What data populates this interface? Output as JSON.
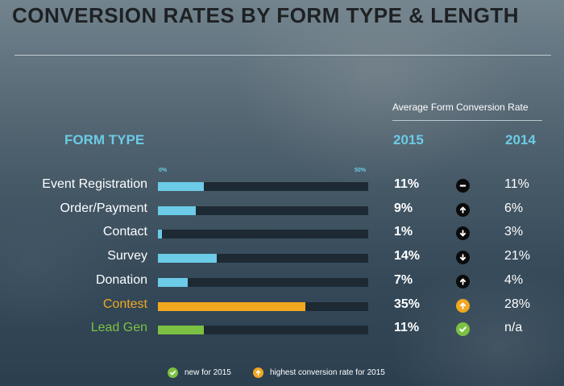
{
  "title": "CONVERSION RATES BY FORM TYPE & LENGTH",
  "avg_label": "Average Form Conversion Rate",
  "headers": {
    "form_type": "FORM TYPE",
    "y2015": "2015",
    "y2014": "2014"
  },
  "axis": {
    "min_label": "0%",
    "max_label": "50%"
  },
  "colors": {
    "bar_default": "#6ccbe6",
    "bar_contest": "#f0a820",
    "bar_leadgen": "#7cc142",
    "label_default": "#ffffff",
    "label_contest": "#f0a820",
    "label_leadgen": "#7cc142",
    "header": "#6ccbe6"
  },
  "chart_data": {
    "type": "bar",
    "orientation": "horizontal",
    "title": "CONVERSION RATES BY FORM TYPE & LENGTH",
    "xlim": [
      0,
      50
    ],
    "categories": [
      "Event Registration",
      "Order/Payment",
      "Contact",
      "Survey",
      "Donation",
      "Contest",
      "Lead Gen"
    ],
    "series": [
      {
        "name": "2015",
        "values": [
          11,
          9,
          1,
          14,
          7,
          35,
          11
        ]
      }
    ],
    "rows": [
      {
        "label": "Event Registration",
        "value": 11,
        "v2015": "11%",
        "v2014": "11%",
        "indicator": "minus-icon",
        "style": "default"
      },
      {
        "label": "Order/Payment",
        "value": 9,
        "v2015": "9%",
        "v2014": "6%",
        "indicator": "arrow-up-icon",
        "style": "default"
      },
      {
        "label": "Contact",
        "value": 1,
        "v2015": "1%",
        "v2014": "3%",
        "indicator": "arrow-down-icon",
        "style": "default"
      },
      {
        "label": "Survey",
        "value": 14,
        "v2015": "14%",
        "v2014": "21%",
        "indicator": "arrow-down-icon",
        "style": "default"
      },
      {
        "label": "Donation",
        "value": 7,
        "v2015": "7%",
        "v2014": "4%",
        "indicator": "arrow-up-icon",
        "style": "default"
      },
      {
        "label": "Contest",
        "value": 35,
        "v2015": "35%",
        "v2014": "28%",
        "indicator": "highest-arrow-up-icon",
        "style": "contest"
      },
      {
        "label": "Lead Gen",
        "value": 11,
        "v2015": "11%",
        "v2014": "n/a",
        "indicator": "check-icon",
        "style": "leadgen"
      }
    ]
  },
  "legend": {
    "new_label": "new for 2015",
    "highest_label": "highest conversion rate for 2015"
  }
}
